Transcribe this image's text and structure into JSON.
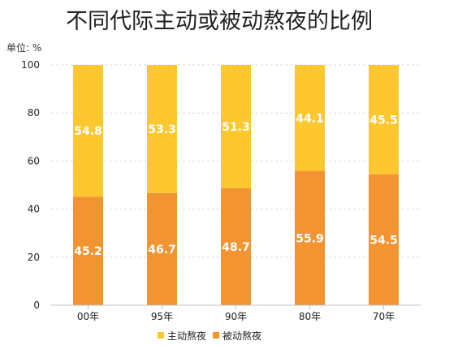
{
  "chart_data": {
    "type": "bar",
    "stacked": true,
    "title": "不同代际主动或被动熬夜的比例",
    "unit_label": "单位: %",
    "categories": [
      "00年",
      "95年",
      "90年",
      "80年",
      "70年"
    ],
    "series": [
      {
        "name": "被动熬夜",
        "values": [
          45.2,
          46.7,
          48.7,
          55.9,
          54.5
        ],
        "color": "#F39432"
      },
      {
        "name": "主动熬夜",
        "values": [
          54.8,
          53.3,
          51.3,
          44.1,
          45.5
        ],
        "color": "#FDC82F"
      }
    ],
    "ylim": [
      0,
      100
    ],
    "yticks": [
      0,
      20,
      40,
      60,
      80,
      100
    ],
    "grid": true,
    "legend_position": "bottom-center",
    "legend_order": [
      "主动熬夜",
      "被动熬夜"
    ]
  }
}
